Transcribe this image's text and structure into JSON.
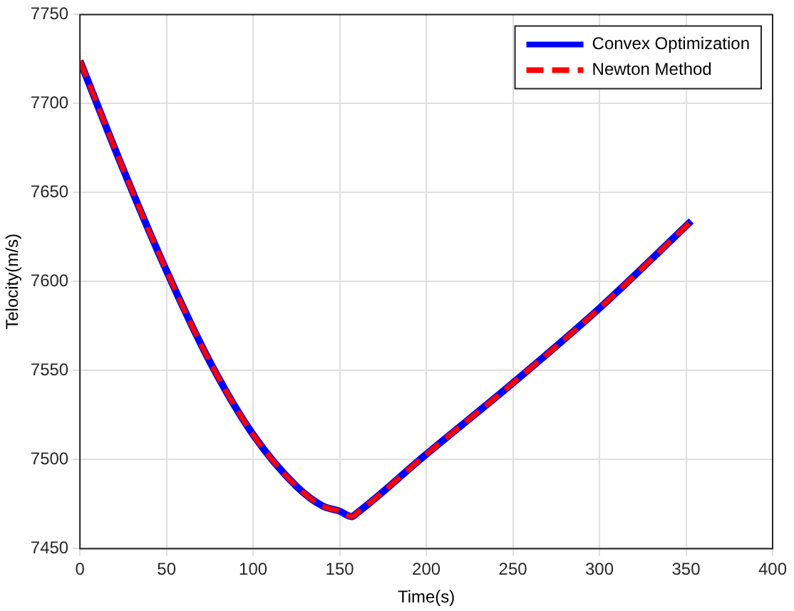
{
  "chart_data": {
    "type": "line",
    "xlabel": "Time(s)",
    "ylabel": "Telocity(m/s)",
    "xlim": [
      0,
      400
    ],
    "xticks": [
      0,
      50,
      100,
      150,
      200,
      250,
      300,
      350,
      400
    ],
    "ylim": [
      7450,
      7750
    ],
    "yticks": [
      7450,
      7500,
      7550,
      7600,
      7650,
      7700,
      7750
    ],
    "grid": true,
    "legend": "top right",
    "marker": "none",
    "series": [
      {
        "name": "Convex Optimization",
        "color": "#0000ff",
        "line_style": "solid",
        "x": [
          0,
          25,
          50,
          75,
          100,
          125,
          140,
          150,
          157,
          160,
          200,
          250,
          300,
          353
        ],
        "values": [
          7724,
          7663,
          7606,
          7555,
          7514,
          7485,
          7474,
          7471,
          7468,
          7470,
          7503,
          7543,
          7585,
          7634
        ]
      },
      {
        "name": "Newton Method",
        "color": "#ff0000",
        "line_style": "dashed",
        "x": [
          0,
          25,
          50,
          75,
          100,
          125,
          140,
          150,
          157,
          160,
          200,
          250,
          300,
          353
        ],
        "values": [
          7724,
          7663,
          7606,
          7555,
          7514,
          7485,
          7474,
          7471,
          7468,
          7470,
          7503,
          7543,
          7585,
          7634
        ]
      }
    ]
  }
}
